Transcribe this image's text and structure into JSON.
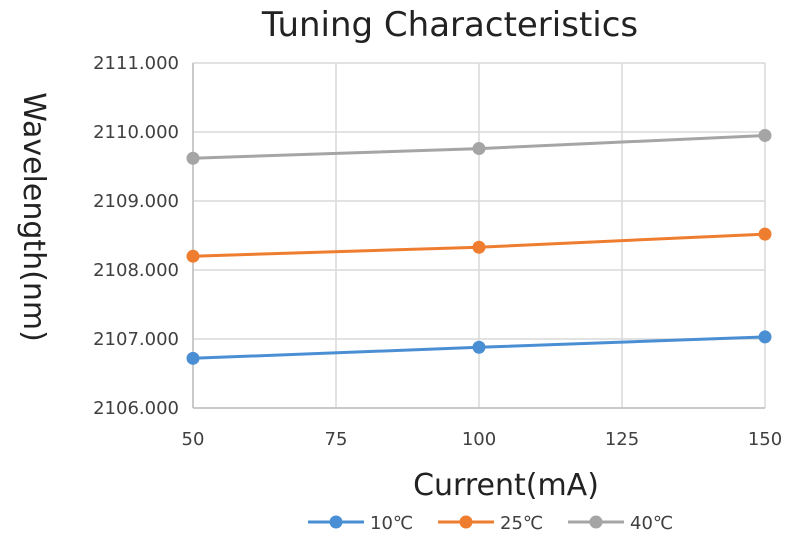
{
  "chart_data": {
    "type": "line",
    "title": "Tuning Characteristics",
    "xlabel": "Current(mA)",
    "ylabel": "Wavelength(nm)",
    "x": [
      50,
      100,
      150
    ],
    "xlim": [
      50,
      150
    ],
    "xticks": [
      "50",
      "75",
      "100",
      "125",
      "150"
    ],
    "ylim": [
      2106.0,
      2111.0
    ],
    "yticks": [
      "2106.000",
      "2107.000",
      "2108.000",
      "2109.000",
      "2110.000",
      "2111.000"
    ],
    "grid": true,
    "legend_position": "bottom",
    "series": [
      {
        "name": "10℃",
        "color": "#4a8fd3",
        "values": [
          2106.72,
          2106.88,
          2107.03
        ]
      },
      {
        "name": "25℃",
        "color": "#ee7d2f",
        "values": [
          2108.2,
          2108.33,
          2108.52
        ]
      },
      {
        "name": "40℃",
        "color": "#a5a5a5",
        "values": [
          2109.62,
          2109.76,
          2109.95
        ]
      }
    ]
  }
}
